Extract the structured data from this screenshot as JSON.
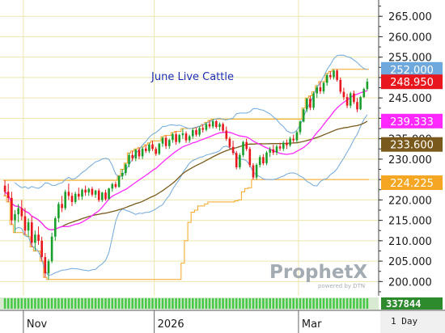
{
  "chart_data": {
    "type": "candlestick",
    "title": "June Live Cattle",
    "ylim": [
      196.5,
      269
    ],
    "y_ticks": [
      200,
      205,
      210,
      215,
      220,
      225,
      230,
      235,
      240,
      245,
      250,
      255,
      260,
      265
    ],
    "y_tick_labels": [
      "200.000",
      "205.000",
      "210.000",
      "215.000",
      "220.000",
      "225.000",
      "230.000",
      "235.000",
      "240.000",
      "245.000",
      "250.000",
      "255.000",
      "260.000",
      "265.000"
    ],
    "x_labels": [
      {
        "label": "Nov",
        "bar": 6
      },
      {
        "label": "2026",
        "bar": 45
      },
      {
        "label": "Mar",
        "bar": 88
      }
    ],
    "right_labels": [
      {
        "text": "252.000",
        "value": 252.0,
        "bg": "#6fa8dc",
        "fg": "#ffffff"
      },
      {
        "text": "248.950",
        "value": 248.95,
        "bg": "#e8161d",
        "fg": "#ffffff"
      },
      {
        "text": "239.333",
        "value": 239.333,
        "bg": "#ff29ff",
        "fg": "#ffffff"
      },
      {
        "text": "233.600",
        "value": 233.6,
        "bg": "#7a5a1c",
        "fg": "#ffffff"
      },
      {
        "text": "224.225",
        "value": 224.225,
        "bg": "#f5a623",
        "fg": "#ffffff"
      }
    ],
    "candles": [
      [
        223.5,
        224.8,
        221.0,
        222.0
      ],
      [
        222.0,
        224.0,
        219.5,
        220.5
      ],
      [
        220.5,
        222.0,
        214.0,
        215.0
      ],
      [
        215.0,
        217.5,
        212.0,
        216.5
      ],
      [
        216.5,
        219.0,
        214.5,
        218.0
      ],
      [
        218.0,
        220.0,
        215.0,
        216.0
      ],
      [
        216.0,
        218.0,
        211.5,
        212.5
      ],
      [
        212.5,
        215.5,
        211.0,
        214.5
      ],
      [
        214.5,
        216.0,
        208.5,
        209.5
      ],
      [
        209.5,
        212.5,
        207.5,
        211.5
      ],
      [
        211.5,
        213.5,
        209.0,
        210.0
      ],
      [
        210.0,
        211.0,
        205.0,
        206.0
      ],
      [
        206.0,
        207.0,
        201.0,
        202.0
      ],
      [
        202.0,
        205.5,
        200.5,
        205.0
      ],
      [
        205.0,
        212.0,
        204.5,
        211.0
      ],
      [
        211.0,
        216.0,
        210.0,
        215.5
      ],
      [
        215.5,
        219.5,
        214.5,
        219.0
      ],
      [
        219.0,
        221.0,
        217.0,
        218.0
      ],
      [
        218.0,
        222.5,
        217.5,
        222.0
      ],
      [
        222.0,
        224.0,
        220.0,
        221.0
      ],
      [
        221.0,
        221.8,
        218.5,
        219.5
      ],
      [
        219.5,
        222.0,
        219.0,
        221.5
      ],
      [
        221.5,
        223.0,
        220.0,
        220.8
      ],
      [
        220.8,
        222.8,
        220.0,
        222.5
      ],
      [
        222.5,
        223.5,
        221.0,
        221.8
      ],
      [
        221.8,
        223.0,
        221.0,
        222.7
      ],
      [
        222.7,
        223.2,
        220.8,
        221.3
      ],
      [
        221.3,
        222.5,
        220.5,
        222.3
      ],
      [
        222.3,
        222.8,
        219.5,
        220.0
      ],
      [
        220.0,
        222.0,
        219.5,
        221.8
      ],
      [
        221.8,
        222.5,
        219.8,
        220.2
      ],
      [
        220.2,
        223.0,
        220.0,
        222.8
      ],
      [
        222.8,
        224.2,
        222.0,
        223.9
      ],
      [
        223.9,
        224.5,
        222.8,
        223.2
      ],
      [
        223.2,
        226.0,
        223.0,
        225.8
      ],
      [
        225.8,
        227.5,
        225.0,
        226.6
      ],
      [
        226.6,
        229.0,
        226.0,
        228.7
      ],
      [
        228.7,
        231.5,
        228.0,
        231.0
      ],
      [
        231.0,
        232.0,
        229.5,
        230.2
      ],
      [
        230.2,
        232.5,
        229.5,
        232.3
      ],
      [
        232.3,
        232.8,
        230.0,
        230.7
      ],
      [
        230.7,
        233.0,
        230.0,
        232.6
      ],
      [
        232.6,
        233.5,
        231.5,
        232.0
      ],
      [
        232.0,
        234.0,
        231.5,
        233.6
      ],
      [
        233.6,
        234.5,
        232.0,
        232.5
      ],
      [
        232.5,
        233.0,
        230.8,
        231.3
      ],
      [
        231.3,
        234.0,
        231.0,
        233.8
      ],
      [
        233.8,
        235.5,
        233.0,
        235.2
      ],
      [
        235.2,
        235.8,
        232.5,
        233.2
      ],
      [
        233.2,
        235.0,
        232.5,
        234.7
      ],
      [
        234.7,
        236.5,
        234.0,
        236.1
      ],
      [
        236.1,
        236.8,
        233.5,
        234.2
      ],
      [
        234.2,
        236.2,
        233.8,
        235.9
      ],
      [
        235.9,
        237.5,
        235.0,
        236.3
      ],
      [
        236.3,
        236.8,
        234.0,
        234.6
      ],
      [
        234.6,
        236.0,
        234.0,
        235.6
      ],
      [
        235.6,
        237.5,
        235.0,
        237.1
      ],
      [
        237.1,
        237.8,
        235.5,
        236.0
      ],
      [
        236.0,
        238.0,
        235.5,
        237.6
      ],
      [
        237.6,
        238.5,
        236.5,
        237.2
      ],
      [
        237.2,
        239.0,
        236.8,
        238.6
      ],
      [
        238.6,
        239.5,
        237.5,
        238.0
      ],
      [
        238.0,
        239.8,
        237.5,
        239.3
      ],
      [
        239.3,
        239.6,
        237.5,
        237.9
      ],
      [
        237.9,
        239.0,
        237.0,
        238.6
      ],
      [
        238.6,
        239.0,
        236.5,
        237.0
      ],
      [
        237.0,
        238.0,
        234.5,
        235.0
      ],
      [
        235.0,
        235.5,
        232.5,
        233.0
      ],
      [
        233.0,
        234.5,
        231.0,
        231.5
      ],
      [
        231.5,
        232.0,
        227.5,
        228.0
      ],
      [
        228.0,
        231.5,
        227.5,
        231.0
      ],
      [
        231.0,
        234.5,
        230.5,
        234.2
      ],
      [
        234.2,
        235.0,
        232.0,
        232.5
      ],
      [
        232.5,
        233.0,
        228.0,
        228.5
      ],
      [
        228.5,
        229.0,
        225.0,
        225.5
      ],
      [
        225.5,
        229.0,
        225.0,
        228.6
      ],
      [
        228.6,
        231.0,
        228.0,
        230.5
      ],
      [
        230.5,
        231.2,
        228.5,
        229.0
      ],
      [
        229.0,
        232.0,
        228.5,
        231.6
      ],
      [
        231.6,
        233.0,
        230.5,
        232.4
      ],
      [
        232.4,
        233.5,
        231.0,
        231.6
      ],
      [
        231.6,
        233.5,
        231.0,
        233.1
      ],
      [
        233.1,
        234.0,
        232.0,
        232.6
      ],
      [
        232.6,
        234.5,
        232.0,
        234.0
      ],
      [
        234.0,
        234.8,
        232.5,
        233.4
      ],
      [
        233.4,
        235.5,
        233.0,
        235.0
      ],
      [
        235.0,
        236.0,
        234.0,
        234.6
      ],
      [
        234.6,
        237.0,
        234.0,
        236.6
      ],
      [
        236.6,
        239.5,
        236.0,
        239.2
      ],
      [
        239.2,
        242.5,
        239.0,
        242.2
      ],
      [
        242.2,
        245.0,
        241.5,
        244.8
      ],
      [
        244.8,
        245.5,
        242.0,
        242.6
      ],
      [
        242.6,
        246.5,
        242.0,
        246.1
      ],
      [
        246.1,
        248.0,
        245.0,
        247.6
      ],
      [
        247.6,
        249.0,
        246.0,
        246.6
      ],
      [
        246.6,
        249.0,
        246.0,
        248.7
      ],
      [
        248.7,
        251.0,
        248.0,
        250.6
      ],
      [
        250.6,
        251.5,
        249.5,
        250.1
      ],
      [
        250.1,
        252.0,
        249.5,
        251.7
      ],
      [
        251.7,
        252.0,
        249.0,
        249.4
      ],
      [
        249.4,
        250.0,
        246.0,
        246.5
      ],
      [
        246.5,
        247.5,
        244.5,
        245.2
      ],
      [
        245.2,
        246.0,
        242.5,
        243.1
      ],
      [
        243.1,
        246.5,
        242.5,
        246.1
      ],
      [
        246.1,
        246.8,
        243.5,
        244.0
      ],
      [
        244.0,
        245.0,
        241.5,
        242.2
      ],
      [
        242.2,
        245.5,
        242.0,
        245.2
      ],
      [
        245.2,
        247.5,
        245.0,
        247.2
      ],
      [
        247.2,
        249.8,
        246.8,
        249.0
      ]
    ]
  },
  "overlay": {
    "volume_value": "337844",
    "period_label": "1 Day",
    "watermark_brand": "ProphetX",
    "watermark_sub": "powered by DTN"
  },
  "colors": {
    "up": "#1a9e2c",
    "down": "#e8161d",
    "donchian": "#f5a623",
    "bollinger": "#6fa8dc",
    "ma_short": "#ff29ff",
    "ma_long": "#7a5a1c",
    "volume": "#47c947",
    "grid": "#ece7ae"
  }
}
